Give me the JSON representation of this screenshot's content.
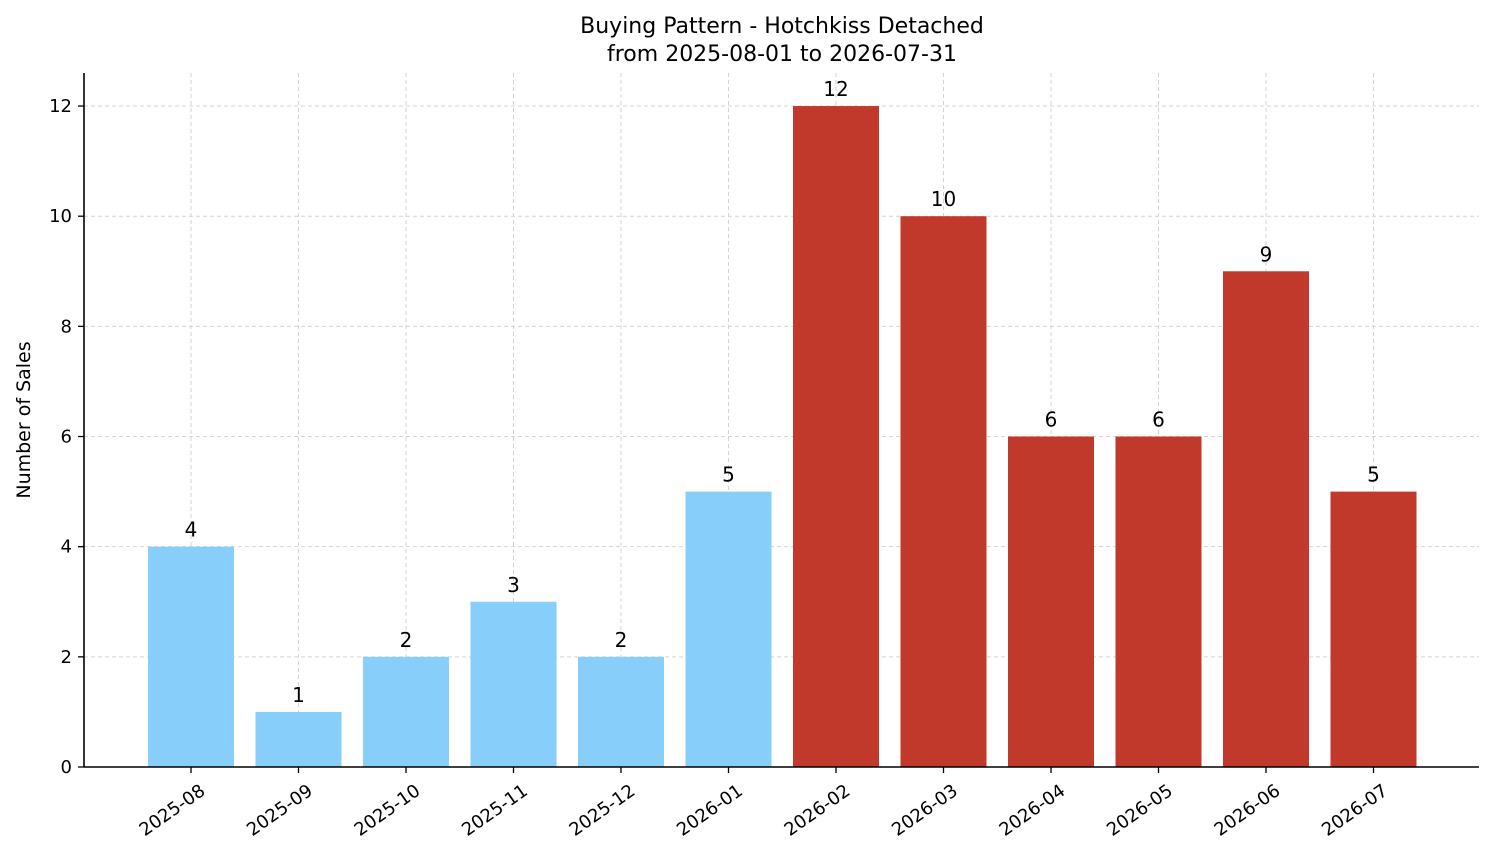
{
  "chart_data": {
    "type": "bar",
    "title": "Buying Pattern - Hotchkiss Detached",
    "subtitle": "from 2025-08-01 to 2026-07-31",
    "xlabel": "",
    "ylabel": "Number of Sales",
    "categories": [
      "2025-08",
      "2025-09",
      "2025-10",
      "2025-11",
      "2025-12",
      "2026-01",
      "2026-02",
      "2026-03",
      "2026-04",
      "2026-05",
      "2026-06",
      "2026-07"
    ],
    "values": [
      4,
      1,
      2,
      3,
      2,
      5,
      12,
      10,
      6,
      6,
      9,
      5
    ],
    "bar_colors": [
      "#87cefa",
      "#87cefa",
      "#87cefa",
      "#87cefa",
      "#87cefa",
      "#87cefa",
      "#c0392b",
      "#c0392b",
      "#c0392b",
      "#c0392b",
      "#c0392b",
      "#c0392b"
    ],
    "yticks": [
      0,
      2,
      4,
      6,
      8,
      10,
      12
    ],
    "ylim": [
      0,
      12.6
    ],
    "grid": true,
    "data_labels": true
  }
}
